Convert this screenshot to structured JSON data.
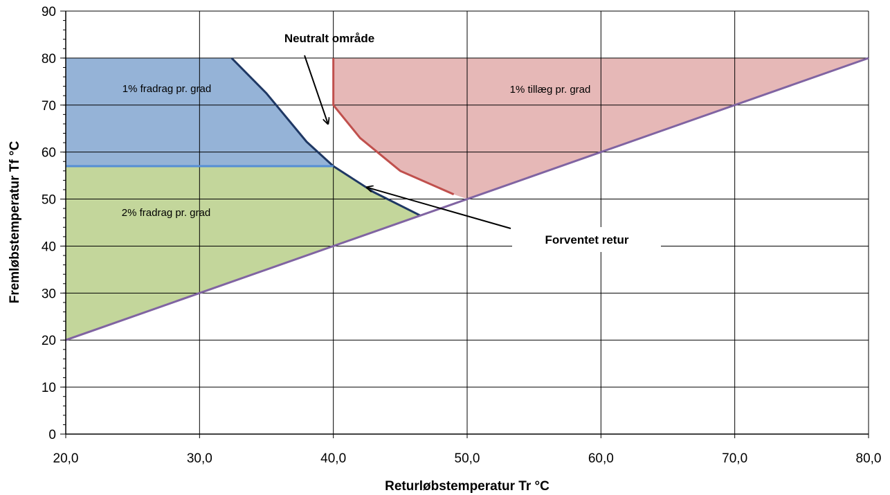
{
  "chart_data": {
    "type": "area",
    "title": "",
    "xlabel": "Returløbstemperatur Tr °C",
    "ylabel": "Fremløbstemperatur Tf °C",
    "xlim": [
      20,
      80
    ],
    "ylim": [
      0,
      90
    ],
    "x_ticks": [
      20,
      30,
      40,
      50,
      60,
      70,
      80
    ],
    "x_tick_labels": [
      "20,0",
      "30,0",
      "40,0",
      "50,0",
      "60,0",
      "70,0",
      "80,0"
    ],
    "y_ticks": [
      0,
      10,
      20,
      30,
      40,
      50,
      60,
      70,
      80,
      90
    ],
    "y_tick_labels": [
      "0",
      "10",
      "20",
      "30",
      "40",
      "50",
      "60",
      "70",
      "80",
      "90"
    ],
    "grid": true,
    "legend": "none",
    "regions": [
      {
        "label": "1% fradrag pr. grad",
        "color": "#95b3d7",
        "points": [
          [
            20,
            80
          ],
          [
            32.4,
            80
          ],
          [
            35,
            72.5
          ],
          [
            38,
            62.2
          ],
          [
            40,
            57
          ],
          [
            20,
            57
          ]
        ]
      },
      {
        "label": "2% fradrag pr. grad",
        "color": "#c3d69b",
        "points": [
          [
            20,
            20
          ],
          [
            20,
            57
          ],
          [
            40,
            57
          ],
          [
            43,
            51.5
          ],
          [
            46.5,
            46.5
          ]
        ]
      },
      {
        "label": "1% tillæg pr. grad",
        "color": "#e6b8b7",
        "points": [
          [
            40,
            80
          ],
          [
            80,
            80
          ],
          [
            50,
            50
          ],
          [
            49,
            51
          ],
          [
            45,
            56
          ],
          [
            42,
            63
          ],
          [
            40,
            70
          ]
        ]
      }
    ],
    "series": [
      {
        "color": "#1f3864",
        "points": [
          [
            32.4,
            80
          ],
          [
            35,
            72.5
          ],
          [
            38,
            62.2
          ],
          [
            40,
            57
          ],
          [
            43,
            51.5
          ],
          [
            46.5,
            46.5
          ]
        ]
      },
      {
        "color": "#558ed5",
        "points": [
          [
            20,
            57
          ],
          [
            40,
            57
          ]
        ]
      },
      {
        "color": "#c0504d",
        "points": [
          [
            40,
            80
          ],
          [
            40,
            70
          ],
          [
            42,
            63
          ],
          [
            45,
            56
          ],
          [
            49,
            51
          ]
        ]
      },
      {
        "color": "#8064a2",
        "points": [
          [
            20,
            20
          ],
          [
            80,
            80
          ]
        ]
      }
    ],
    "annotations": [
      {
        "text": "Neutralt område",
        "target": [
          39.6,
          66
        ]
      },
      {
        "text": "Forventet retur",
        "target": [
          42.5,
          52.5
        ]
      }
    ]
  }
}
